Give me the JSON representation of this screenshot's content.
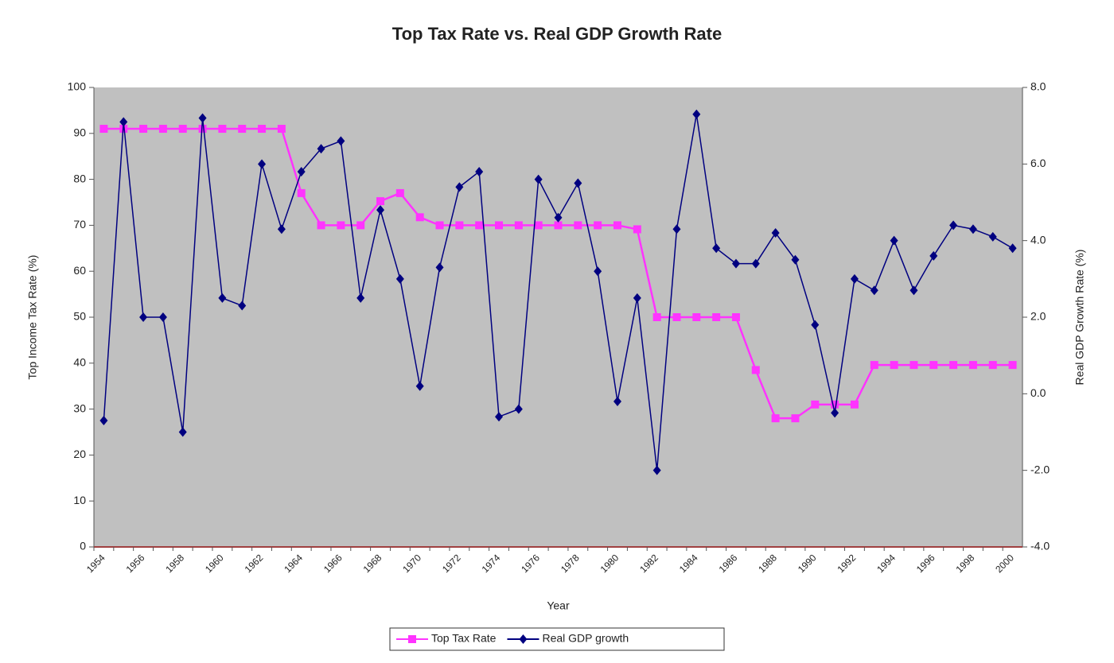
{
  "chart_data": {
    "type": "line",
    "title": "Top Tax Rate vs. Real GDP Growth Rate",
    "x_label": "Year",
    "y_label": "Top Income Tax Rate (%)",
    "y2_label": "Real GDP Growth Rate (%)",
    "categories": [
      "1954",
      null,
      "1956",
      null,
      "1958",
      null,
      "1960",
      null,
      "1962",
      null,
      "1964",
      null,
      "1966",
      null,
      "1968",
      null,
      "1970",
      null,
      "1972",
      null,
      "1974",
      null,
      "1976",
      null,
      "1978",
      null,
      "1980",
      null,
      "1982",
      null,
      "1984",
      null,
      "1986",
      null,
      "1988",
      null,
      "1990",
      null,
      "1992",
      null,
      "1994",
      null,
      "1996",
      null,
      "1998",
      null,
      "2000"
    ],
    "series": [
      {
        "name": "Top Tax Rate",
        "color": "#ff33ff",
        "marker": "square",
        "axis": "y",
        "values": [
          91,
          91,
          91,
          91,
          91,
          91,
          91,
          91,
          91,
          91,
          77,
          70,
          70,
          70,
          75.25,
          77,
          71.75,
          70,
          70,
          70,
          70,
          70,
          70,
          70,
          70,
          70,
          70,
          69.13,
          50,
          50,
          50,
          50,
          50,
          38.5,
          28,
          28,
          31,
          31,
          31,
          39.6,
          39.6,
          39.6,
          39.6,
          39.6,
          39.6,
          39.6,
          39.6
        ]
      },
      {
        "name": "Real GDP growth",
        "color": "#000080",
        "marker": "diamond",
        "axis": "y2",
        "values": [
          -0.7,
          7.1,
          2.0,
          2.0,
          -1.0,
          7.2,
          2.5,
          2.3,
          6.0,
          4.3,
          5.8,
          6.4,
          6.6,
          2.5,
          4.8,
          3.0,
          0.2,
          3.3,
          5.4,
          5.8,
          -0.6,
          -0.4,
          5.6,
          4.6,
          5.5,
          3.2,
          -0.2,
          2.5,
          -2.0,
          4.3,
          7.3,
          3.8,
          3.4,
          3.4,
          4.2,
          3.5,
          1.8,
          -0.5,
          3.0,
          2.7,
          4.0,
          2.7,
          3.6,
          4.4,
          4.3,
          4.1,
          3.8
        ]
      }
    ],
    "ylim": [
      0,
      100
    ],
    "yticks": [
      0,
      10,
      20,
      30,
      40,
      50,
      60,
      70,
      80,
      90,
      100
    ],
    "y2lim": [
      -4,
      8
    ],
    "y2ticks": [
      {
        "value": -4,
        "label": "-4.0"
      },
      {
        "value": -2,
        "label": "-2.0"
      },
      {
        "value": 0,
        "label": "0.0"
      },
      {
        "value": 2,
        "label": "2.0"
      },
      {
        "value": 4,
        "label": "4.0"
      },
      {
        "value": 6,
        "label": "6.0"
      },
      {
        "value": 8,
        "label": "8.0"
      }
    ],
    "plot_background": "#c0c0c0",
    "legend": "bottom"
  }
}
